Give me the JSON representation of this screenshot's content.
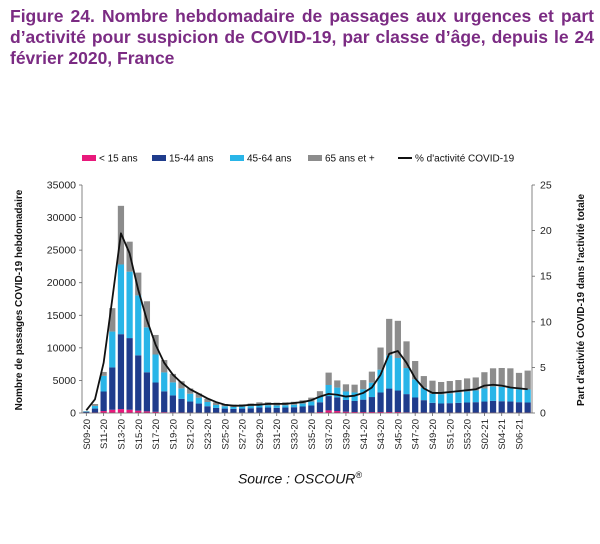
{
  "figure": {
    "title": "Figure 24. Nombre hebdomadaire de passages aux urgences et part d’activité pour suspicion de COVID-19, par classe d’âge, depuis le 24 février 2020, France",
    "source_label": "Source : OSCOUR",
    "source_mark": "®"
  },
  "chart_data": {
    "type": "bar",
    "stacked": true,
    "title": "",
    "ylabel": "Nombre de passages COVID-19 hebdomadaire",
    "y2label": "Part d'activité COVID-19 dans l'activité totale",
    "ylim": [
      0,
      35000
    ],
    "y2lim": [
      0,
      25
    ],
    "yticks": [
      "0",
      "5000",
      "10000",
      "15000",
      "20000",
      "25000",
      "30000",
      "35000"
    ],
    "y2ticks": [
      "0",
      "5",
      "10",
      "15",
      "20",
      "25"
    ],
    "legend_position": "top",
    "x": [
      "S09-20",
      "S10-20",
      "S11-20",
      "S12-20",
      "S13-20",
      "S14-20",
      "S15-20",
      "S16-20",
      "S17-20",
      "S18-20",
      "S19-20",
      "S20-20",
      "S21-20",
      "S22-20",
      "S23-20",
      "S24-20",
      "S25-20",
      "S26-20",
      "S27-20",
      "S28-20",
      "S29-20",
      "S30-20",
      "S31-20",
      "S32-20",
      "S33-20",
      "S34-20",
      "S35-20",
      "S36-20",
      "S37-20",
      "S38-20",
      "S39-20",
      "S40-20",
      "S41-20",
      "S42-20",
      "S43-20",
      "S44-20",
      "S45-20",
      "S46-20",
      "S47-20",
      "S48-20",
      "S49-20",
      "S50-20",
      "S51-20",
      "S52-20",
      "S53-20",
      "S01-21",
      "S02-21",
      "S03-21",
      "S04-21",
      "S05-21",
      "S06-21",
      "S07-21"
    ],
    "x_tick_labels": [
      "S09-20",
      "S11-20",
      "S13-20",
      "S15-20",
      "S17-20",
      "S19-20",
      "S21-20",
      "S23-20",
      "S25-20",
      "S27-20",
      "S29-20",
      "S31-20",
      "S33-20",
      "S35-20",
      "S37-20",
      "S39-20",
      "S41-20",
      "S43-20",
      "S45-20",
      "S47-20",
      "S49-20",
      "S51-20",
      "S53-20",
      "S02-21",
      "S04-21",
      "S06-21"
    ],
    "series": [
      {
        "name": "< 15 ans",
        "color": "#e8197b",
        "values": [
          20,
          80,
          300,
          500,
          600,
          500,
          350,
          250,
          180,
          130,
          100,
          80,
          60,
          50,
          40,
          30,
          30,
          30,
          30,
          30,
          40,
          40,
          40,
          40,
          40,
          50,
          60,
          150,
          400,
          300,
          200,
          150,
          150,
          150,
          150,
          150,
          150,
          100,
          80,
          70,
          60,
          60,
          60,
          60,
          60,
          60,
          60,
          60,
          60,
          60,
          60,
          60
        ]
      },
      {
        "name": "15-44 ans",
        "color": "#1f3c8c",
        "values": [
          150,
          600,
          3000,
          6500,
          11500,
          11000,
          8500,
          6000,
          4500,
          3200,
          2600,
          2100,
          1700,
          1400,
          1000,
          750,
          650,
          600,
          650,
          700,
          800,
          800,
          750,
          800,
          850,
          950,
          1100,
          1500,
          2200,
          2100,
          1800,
          1700,
          1900,
          2300,
          3000,
          3600,
          3300,
          2800,
          2300,
          1900,
          1500,
          1400,
          1450,
          1500,
          1550,
          1600,
          1700,
          1800,
          1750,
          1700,
          1600,
          1550
        ]
      },
      {
        "name": "45-64 ans",
        "color": "#29b5e8",
        "values": [
          80,
          400,
          2400,
          5500,
          10700,
          10200,
          9200,
          6900,
          4300,
          2900,
          2000,
          1600,
          1200,
          900,
          650,
          450,
          350,
          300,
          300,
          320,
          350,
          350,
          350,
          350,
          380,
          450,
          600,
          900,
          1700,
          1500,
          1300,
          1300,
          1600,
          2200,
          3500,
          5100,
          5000,
          4000,
          2800,
          1900,
          1400,
          1400,
          1500,
          1600,
          1700,
          1800,
          2000,
          2200,
          2200,
          2100,
          2000,
          2000
        ]
      },
      {
        "name": "65 ans et +",
        "color": "#8c8c8c",
        "values": [
          50,
          300,
          600,
          3600,
          9000,
          4600,
          3500,
          4000,
          3000,
          1900,
          1300,
          1100,
          800,
          650,
          500,
          400,
          350,
          350,
          350,
          400,
          450,
          450,
          450,
          450,
          450,
          500,
          600,
          800,
          1900,
          1100,
          1100,
          1200,
          1400,
          1700,
          3400,
          5600,
          5700,
          4100,
          2800,
          1800,
          2000,
          1900,
          1900,
          1900,
          2000,
          2000,
          2500,
          2800,
          2900,
          3000,
          2500,
          2900
        ]
      },
      {
        "name": "% d'activité COVID-19",
        "type": "line",
        "axis": "y2",
        "color": "#111111",
        "values": [
          0.3,
          1.5,
          5.5,
          12.5,
          19.7,
          17.5,
          13.5,
          10.2,
          7.5,
          5.5,
          4.2,
          3.3,
          2.6,
          2.1,
          1.6,
          1.2,
          0.9,
          0.8,
          0.8,
          0.9,
          0.9,
          1.0,
          1.0,
          1.0,
          1.1,
          1.2,
          1.4,
          1.8,
          2.1,
          2.0,
          1.8,
          1.9,
          2.2,
          2.8,
          4.2,
          6.5,
          6.8,
          5.5,
          3.8,
          2.7,
          2.2,
          2.2,
          2.3,
          2.4,
          2.5,
          2.6,
          3.0,
          3.1,
          3.0,
          2.8,
          2.7,
          2.6
        ]
      }
    ]
  }
}
